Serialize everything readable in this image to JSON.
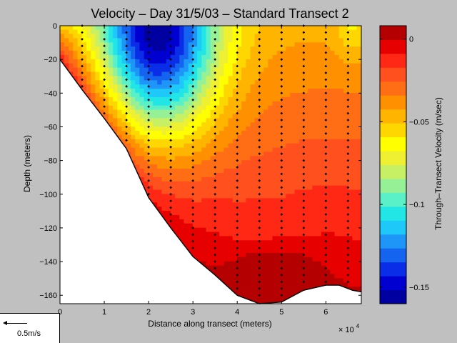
{
  "chart_data": {
    "type": "heatmap",
    "title": "Velocity – Day 31/5/03 – Standard Transect 2",
    "xlabel": "Distance along transect (meters)",
    "ylabel": "Depth (meters)",
    "x_multiplier": "× 10",
    "x_multiplier_exp": "4",
    "xlim": [
      0,
      6.8
    ],
    "ylim": [
      -165,
      0
    ],
    "xticks": [
      "0",
      "1",
      "2",
      "3",
      "4",
      "5",
      "6"
    ],
    "yticks": [
      "0",
      "−20",
      "−40",
      "−60",
      "−80",
      "−100",
      "−120",
      "−140",
      "−160"
    ],
    "colorbar": {
      "label": "Through–Transect Velocity (m/sec)",
      "range": [
        -0.16,
        0.008
      ],
      "ticks": [
        "0",
        "−0.05",
        "−0.1",
        "−0.15"
      ],
      "tick_values": [
        0,
        -0.05,
        -0.1,
        -0.15
      ],
      "colors": [
        "#0000a0",
        "#0000d0",
        "#0a2ee8",
        "#1464f0",
        "#1e96f8",
        "#1ec8f8",
        "#22e6e6",
        "#5af0c8",
        "#96f096",
        "#c8f064",
        "#f0f032",
        "#ffff00",
        "#ffd700",
        "#ffb400",
        "#ff9100",
        "#ff6e14",
        "#ff501e",
        "#ff2814",
        "#e60000",
        "#b40000"
      ]
    },
    "bottom_profile": [
      [
        0,
        -20
      ],
      [
        0.5,
        -38
      ],
      [
        1,
        -55
      ],
      [
        1.5,
        -73
      ],
      [
        2,
        -102
      ],
      [
        2.5,
        -120
      ],
      [
        3,
        -137
      ],
      [
        3.5,
        -148
      ],
      [
        4,
        -160
      ],
      [
        4.5,
        -165
      ],
      [
        5,
        -164
      ],
      [
        5.5,
        -157
      ],
      [
        6,
        -154
      ],
      [
        6.3,
        -154
      ],
      [
        6.6,
        -157
      ],
      [
        6.8,
        -158
      ]
    ],
    "station_x": [
      0.5,
      1.0,
      1.5,
      2.0,
      2.5,
      3.0,
      3.5,
      4.0,
      4.5,
      5.0,
      5.5,
      6.0,
      6.5
    ],
    "velocity_pattern": "core minimum about −0.16 m/s near x=2.2e4 m, depth −10 m; values rise toward 0 with depth; positive near bottom at x=4.5–5e4 m",
    "scale_legend": "0.5m/s"
  }
}
